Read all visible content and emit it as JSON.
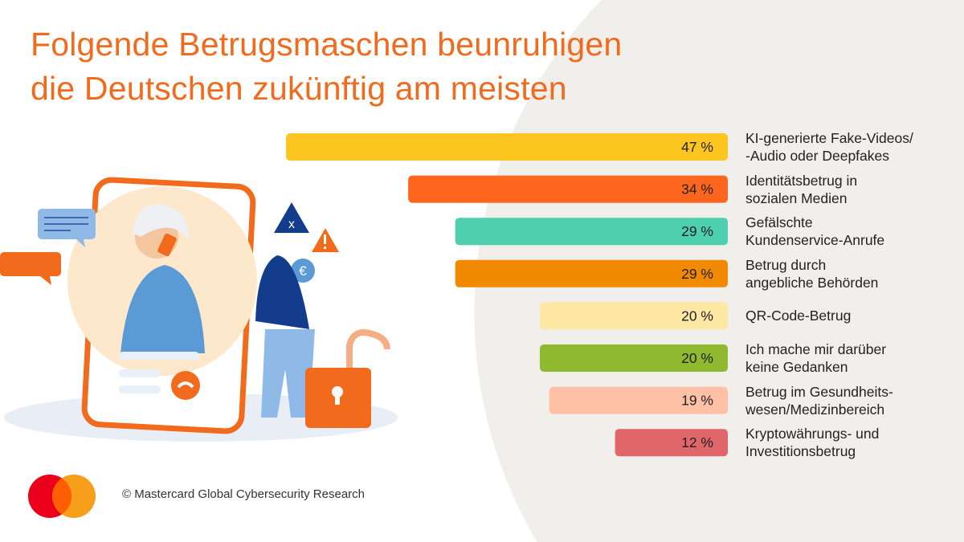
{
  "title": {
    "line1": "Folgende Betrugsmaschen beunruhigen",
    "line2": "die Deutschen zukünftig am meisten"
  },
  "chart_data": {
    "type": "bar",
    "orientation": "horizontal",
    "categories": [
      "KI-generierte Fake-Videos/\n-Audio oder Deepfakes",
      "Identitätsbetrug in\nsozialen Medien",
      "Gefälschte\nKundenservice-Anrufe",
      "Betrug durch\nangebliche Behörden",
      "QR-Code-Betrug",
      "Ich mache mir darüber\nkeine Gedanken",
      "Betrug im Gesundheits-\nwesen/Medizinbereich",
      "Kryptowährungs- und\nInvestitionsbetrug"
    ],
    "values": [
      47,
      34,
      29,
      29,
      20,
      20,
      19,
      12
    ],
    "value_labels": [
      "47 %",
      "34 %",
      "29 %",
      "29 %",
      "20 %",
      "20 %",
      "19 %",
      "12 %"
    ],
    "colors": [
      "#fdc520",
      "#fe661e",
      "#4ecfb0",
      "#f18a00",
      "#ffe8a3",
      "#8fba2f",
      "#ffc1a6",
      "#e1666a"
    ],
    "unit": "%",
    "xlim": [
      0,
      47
    ],
    "grid": false
  },
  "footer": {
    "copyright": "© Mastercard Global Cybersecurity Research",
    "logo_colors": [
      "#eb001b",
      "#f79e1b",
      "#ff5f00"
    ]
  },
  "accent_color": "#f26a1b"
}
